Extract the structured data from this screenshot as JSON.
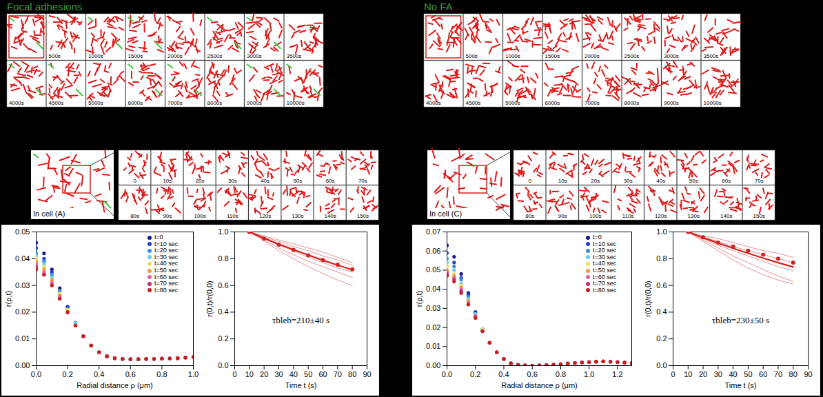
{
  "figure": {
    "panels": [
      {
        "title": "Focal adhesions",
        "color": "#3a9a3a",
        "snapshots": [
          null,
          "500s",
          "1000s",
          "1500s",
          "2000s",
          "2500s",
          "3000s",
          "3500s",
          "4000s",
          "4500s",
          "5000s",
          "6000s",
          "7000s",
          "8000s",
          "9000s",
          "10000s"
        ],
        "zoom_label": "In cell (A)",
        "zoom_snapshots": [
          "0",
          "10s",
          "20s",
          "30s",
          "40s",
          "50s",
          "60s",
          "70s",
          "80s",
          "90s",
          "100s",
          "110s",
          "120s",
          "130s",
          "140s",
          "150s"
        ]
      },
      {
        "title": "No FA",
        "color": "#3a9a3a",
        "snapshots": [
          null,
          "500s",
          "1000s",
          "1500s",
          "2000s",
          "2500s",
          "3000s",
          "3500s",
          "4000s",
          "4500s",
          "5000s",
          "6000s",
          "7000s",
          "8000s",
          "9000s",
          "10000s"
        ],
        "zoom_label": "In cell (C)",
        "zoom_snapshots": [
          "0",
          "10s",
          "20s",
          "30s",
          "40s",
          "50s",
          "60s",
          "70s",
          "80s",
          "90s",
          "100s",
          "110s",
          "120s",
          "130s",
          "140s",
          "150s"
        ]
      }
    ]
  },
  "chart_data": [
    {
      "type": "scatter",
      "marker": "circle",
      "legend": "top-right",
      "xlabel": "Radial distance ρ (μm)",
      "ylabel": "r(ρ,t)",
      "xlim": [
        0,
        1
      ],
      "xticks": [
        {
          "value": 0,
          "label": "0.0"
        },
        0.2,
        0.4,
        0.6,
        0.8,
        {
          "value": 1,
          "label": "1.0"
        }
      ],
      "ylim": [
        0,
        0.05
      ],
      "yticks": [
        {
          "value": 0,
          "label": "0.00"
        },
        0.01,
        0.02,
        0.03,
        0.04,
        0.05
      ],
      "x": [
        0,
        0.05,
        0.1,
        0.15,
        0.2,
        0.25,
        0.3,
        0.35,
        0.4,
        0.45,
        0.5,
        0.55,
        0.6,
        0.65,
        0.7,
        0.75,
        0.8,
        0.85,
        0.9,
        0.95,
        1.0
      ],
      "series": [
        {
          "name": "t=0",
          "color": "#1a1a8c",
          "values": [
            0.046,
            0.042,
            0.036,
            0.029,
            0.022,
            0.016,
            0.011,
            0.0075,
            0.005,
            0.0035,
            0.0028,
            0.0025,
            0.0024,
            0.0024,
            0.0025,
            0.0025,
            0.0026,
            0.0027,
            0.0028,
            0.003,
            0.0032
          ]
        },
        {
          "name": "t=10 sec",
          "color": "#2040d0",
          "values": [
            0.044,
            0.04,
            0.035,
            0.028,
            0.022,
            0.016,
            0.011,
            0.0075,
            0.005,
            0.0035,
            0.0028,
            0.0025,
            0.0024,
            0.0024,
            0.0025,
            0.0025,
            0.0026,
            0.0027,
            0.0028,
            0.003,
            0.0032
          ]
        },
        {
          "name": "t=20 sec",
          "color": "#3a8fd8",
          "values": [
            0.042,
            0.039,
            0.034,
            0.028,
            0.021,
            0.016,
            0.011,
            0.0075,
            0.005,
            0.0035,
            0.0028,
            0.0025,
            0.0024,
            0.0024,
            0.0025,
            0.0025,
            0.0026,
            0.0027,
            0.0028,
            0.003,
            0.0032
          ]
        },
        {
          "name": "t=30 sec",
          "color": "#6ad0e0",
          "values": [
            0.041,
            0.038,
            0.033,
            0.027,
            0.021,
            0.016,
            0.011,
            0.0075,
            0.005,
            0.0035,
            0.0028,
            0.0025,
            0.0024,
            0.0024,
            0.0025,
            0.0025,
            0.0026,
            0.0027,
            0.0028,
            0.003,
            0.0032
          ]
        },
        {
          "name": "t=40 sec",
          "color": "#e8e060",
          "values": [
            0.04,
            0.037,
            0.032,
            0.027,
            0.021,
            0.015,
            0.011,
            0.0075,
            0.005,
            0.0035,
            0.0028,
            0.0025,
            0.0024,
            0.0024,
            0.0025,
            0.0025,
            0.0026,
            0.0027,
            0.0028,
            0.003,
            0.0032
          ]
        },
        {
          "name": "t=50 sec",
          "color": "#f0a030",
          "values": [
            0.039,
            0.036,
            0.032,
            0.026,
            0.02,
            0.015,
            0.011,
            0.0075,
            0.005,
            0.0035,
            0.0028,
            0.0025,
            0.0024,
            0.0024,
            0.0025,
            0.0025,
            0.0026,
            0.0027,
            0.0028,
            0.003,
            0.0032
          ]
        },
        {
          "name": "t=60 sec",
          "color": "#e060a0",
          "values": [
            0.038,
            0.035,
            0.031,
            0.026,
            0.02,
            0.015,
            0.011,
            0.0075,
            0.005,
            0.0035,
            0.0028,
            0.0025,
            0.0024,
            0.0024,
            0.0025,
            0.0025,
            0.0026,
            0.0027,
            0.0028,
            0.003,
            0.0032
          ]
        },
        {
          "name": "t=70 sec",
          "color": "#c03070",
          "values": [
            0.037,
            0.034,
            0.03,
            0.025,
            0.02,
            0.015,
            0.011,
            0.0075,
            0.005,
            0.0035,
            0.0028,
            0.0025,
            0.0024,
            0.0024,
            0.0025,
            0.0025,
            0.0026,
            0.0027,
            0.0028,
            0.003,
            0.0032
          ]
        },
        {
          "name": "t=80 sec",
          "color": "#c81e1e",
          "values": [
            0.036,
            0.034,
            0.03,
            0.025,
            0.02,
            0.015,
            0.011,
            0.0075,
            0.005,
            0.0035,
            0.0028,
            0.0025,
            0.0024,
            0.0024,
            0.0025,
            0.0025,
            0.0026,
            0.0027,
            0.0028,
            0.003,
            0.0032
          ]
        }
      ]
    },
    {
      "type": "scatter",
      "marker": "circle",
      "color": "#d42020",
      "xlabel": "Time t (s)",
      "ylabel": "r(0,t)/r(0,0)",
      "xlim": [
        0,
        90
      ],
      "xticks": [
        0,
        10,
        20,
        30,
        40,
        50,
        60,
        70,
        80,
        90
      ],
      "ylim": [
        0,
        1
      ],
      "yticks": [
        {
          "value": 0,
          "label": "0.0"
        },
        0.2,
        0.4,
        0.6,
        0.8,
        {
          "value": 1,
          "label": "1.0"
        }
      ],
      "annotation": "τbleb=210±40 s",
      "x": [
        10,
        20,
        30,
        40,
        50,
        60,
        70,
        80
      ],
      "values": [
        1.0,
        0.95,
        0.905,
        0.865,
        0.825,
        0.79,
        0.755,
        0.72
      ],
      "fit": [
        1.0,
        0.953,
        0.909,
        0.867,
        0.827,
        0.788,
        0.751,
        0.717
      ],
      "cells": [
        [
          1.0,
          0.97,
          0.94,
          0.91,
          0.88,
          0.85,
          0.81,
          0.77
        ],
        [
          1.0,
          0.96,
          0.93,
          0.89,
          0.86,
          0.82,
          0.79,
          0.75
        ],
        [
          1.0,
          0.95,
          0.9,
          0.86,
          0.81,
          0.77,
          0.73,
          0.7
        ],
        [
          1.0,
          0.94,
          0.88,
          0.83,
          0.78,
          0.74,
          0.7,
          0.66
        ],
        [
          1.0,
          0.93,
          0.86,
          0.8,
          0.74,
          0.69,
          0.64,
          0.6
        ]
      ]
    },
    {
      "type": "scatter",
      "marker": "circle",
      "legend": "top-right",
      "xlabel": "Radial distance ρ (μm)",
      "ylabel": "r(ρ,t)",
      "xlim": [
        0,
        1.3
      ],
      "xticks": [
        {
          "value": 0,
          "label": "0.0"
        },
        0.2,
        0.4,
        0.6,
        0.8,
        {
          "value": 1,
          "label": "1.0"
        },
        1.2
      ],
      "ylim": [
        0,
        0.07
      ],
      "yticks": [
        {
          "value": 0,
          "label": "0.00"
        },
        0.01,
        0.02,
        0.03,
        0.04,
        0.05,
        0.06,
        0.07
      ],
      "x": [
        0,
        0.05,
        0.1,
        0.15,
        0.2,
        0.25,
        0.3,
        0.35,
        0.4,
        0.45,
        0.5,
        0.55,
        0.6,
        0.65,
        0.7,
        0.75,
        0.8,
        0.85,
        0.9,
        0.95,
        1.0,
        1.05,
        1.1,
        1.15,
        1.2,
        1.25,
        1.3
      ],
      "series": [
        {
          "name": "t=0",
          "color": "#1a1a8c",
          "values": [
            0.063,
            0.057,
            0.048,
            0.038,
            0.028,
            0.019,
            0.012,
            0.007,
            0.0035,
            0.0012,
            0.0004,
            0.0001,
            0,
            0.0001,
            0.0003,
            0.0005,
            0.0008,
            0.0011,
            0.0014,
            0.0017,
            0.0019,
            0.0021,
            0.0022,
            0.0021,
            0.0019,
            0.0016,
            0.0013
          ]
        },
        {
          "name": "t=10 sec",
          "color": "#2040d0",
          "values": [
            0.059,
            0.054,
            0.046,
            0.037,
            0.028,
            0.019,
            0.012,
            0.007,
            0.0035,
            0.0012,
            0.0004,
            0.0001,
            0,
            0.0001,
            0.0003,
            0.0005,
            0.0008,
            0.0011,
            0.0014,
            0.0017,
            0.0019,
            0.0021,
            0.0022,
            0.0021,
            0.0019,
            0.0016,
            0.0013
          ]
        },
        {
          "name": "t=20 sec",
          "color": "#3a8fd8",
          "values": [
            0.056,
            0.052,
            0.045,
            0.036,
            0.027,
            0.019,
            0.012,
            0.007,
            0.0035,
            0.0012,
            0.0004,
            0.0001,
            0,
            0.0001,
            0.0003,
            0.0005,
            0.0008,
            0.0011,
            0.0014,
            0.0017,
            0.0019,
            0.0021,
            0.0022,
            0.0021,
            0.0019,
            0.0016,
            0.0013
          ]
        },
        {
          "name": "t=30 sec",
          "color": "#6ad0e0",
          "values": [
            0.054,
            0.05,
            0.043,
            0.035,
            0.027,
            0.019,
            0.012,
            0.007,
            0.0035,
            0.0012,
            0.0004,
            0.0001,
            0,
            0.0001,
            0.0003,
            0.0005,
            0.0008,
            0.0011,
            0.0014,
            0.0017,
            0.0019,
            0.0021,
            0.0022,
            0.0021,
            0.0019,
            0.0016,
            0.0013
          ]
        },
        {
          "name": "t=40 sec",
          "color": "#e8e060",
          "values": [
            0.052,
            0.048,
            0.042,
            0.034,
            0.026,
            0.019,
            0.012,
            0.007,
            0.0035,
            0.0012,
            0.0004,
            0.0001,
            0,
            0.0001,
            0.0003,
            0.0005,
            0.0008,
            0.0011,
            0.0014,
            0.0017,
            0.0019,
            0.0021,
            0.0022,
            0.0021,
            0.0019,
            0.0016,
            0.0013
          ]
        },
        {
          "name": "t=50 sec",
          "color": "#f0a030",
          "values": [
            0.05,
            0.047,
            0.041,
            0.034,
            0.026,
            0.018,
            0.012,
            0.007,
            0.0035,
            0.0012,
            0.0004,
            0.0001,
            0,
            0.0001,
            0.0003,
            0.0005,
            0.0008,
            0.0011,
            0.0014,
            0.0017,
            0.0019,
            0.0021,
            0.0022,
            0.0021,
            0.0019,
            0.0016,
            0.0013
          ]
        },
        {
          "name": "t=60 sec",
          "color": "#e060a0",
          "values": [
            0.049,
            0.046,
            0.04,
            0.033,
            0.026,
            0.018,
            0.012,
            0.007,
            0.0035,
            0.0012,
            0.0004,
            0.0001,
            0,
            0.0001,
            0.0003,
            0.0005,
            0.0008,
            0.0011,
            0.0014,
            0.0017,
            0.0019,
            0.0021,
            0.0022,
            0.0021,
            0.0019,
            0.0016,
            0.0013
          ]
        },
        {
          "name": "t=70 sec",
          "color": "#c03070",
          "values": [
            0.048,
            0.045,
            0.039,
            0.032,
            0.025,
            0.018,
            0.012,
            0.007,
            0.0035,
            0.0012,
            0.0004,
            0.0001,
            0,
            0.0001,
            0.0003,
            0.0005,
            0.0008,
            0.0011,
            0.0014,
            0.0017,
            0.0019,
            0.0021,
            0.0022,
            0.0021,
            0.0019,
            0.0016,
            0.0013
          ]
        },
        {
          "name": "t=80 sec",
          "color": "#c81e1e",
          "values": [
            0.047,
            0.044,
            0.038,
            0.032,
            0.025,
            0.018,
            0.012,
            0.007,
            0.0035,
            0.0012,
            0.0004,
            0.0001,
            0,
            0.0001,
            0.0003,
            0.0005,
            0.0008,
            0.0011,
            0.0014,
            0.0017,
            0.0019,
            0.0021,
            0.0022,
            0.0021,
            0.0019,
            0.0016,
            0.0013
          ]
        }
      ]
    },
    {
      "type": "scatter",
      "marker": "circle",
      "color": "#d42020",
      "xlabel": "Time t (s)",
      "ylabel": "r(0,t)/r(0,0)",
      "xlim": [
        0,
        90
      ],
      "xticks": [
        0,
        10,
        20,
        30,
        40,
        50,
        60,
        70,
        80,
        90
      ],
      "ylim": [
        0,
        1
      ],
      "yticks": [
        {
          "value": 0,
          "label": "0.0"
        },
        0.2,
        0.4,
        0.6,
        0.8,
        {
          "value": 1,
          "label": "1.0"
        }
      ],
      "annotation": "τbleb=230±50 s",
      "x": [
        10,
        20,
        30,
        40,
        50,
        60,
        70,
        80
      ],
      "values": [
        1.0,
        0.96,
        0.92,
        0.89,
        0.86,
        0.83,
        0.8,
        0.77
      ],
      "fit": [
        1.0,
        0.957,
        0.917,
        0.878,
        0.84,
        0.804,
        0.77,
        0.738
      ],
      "cells": [
        [
          1.0,
          0.97,
          0.95,
          0.92,
          0.89,
          0.86,
          0.84,
          0.81
        ],
        [
          1.0,
          0.96,
          0.93,
          0.89,
          0.86,
          0.83,
          0.8,
          0.77
        ],
        [
          1.0,
          0.95,
          0.9,
          0.86,
          0.82,
          0.78,
          0.74,
          0.71
        ],
        [
          1.0,
          0.94,
          0.88,
          0.82,
          0.77,
          0.72,
          0.67,
          0.63
        ],
        [
          1.0,
          0.93,
          0.86,
          0.79,
          0.73,
          0.68,
          0.64,
          0.61
        ]
      ]
    }
  ]
}
